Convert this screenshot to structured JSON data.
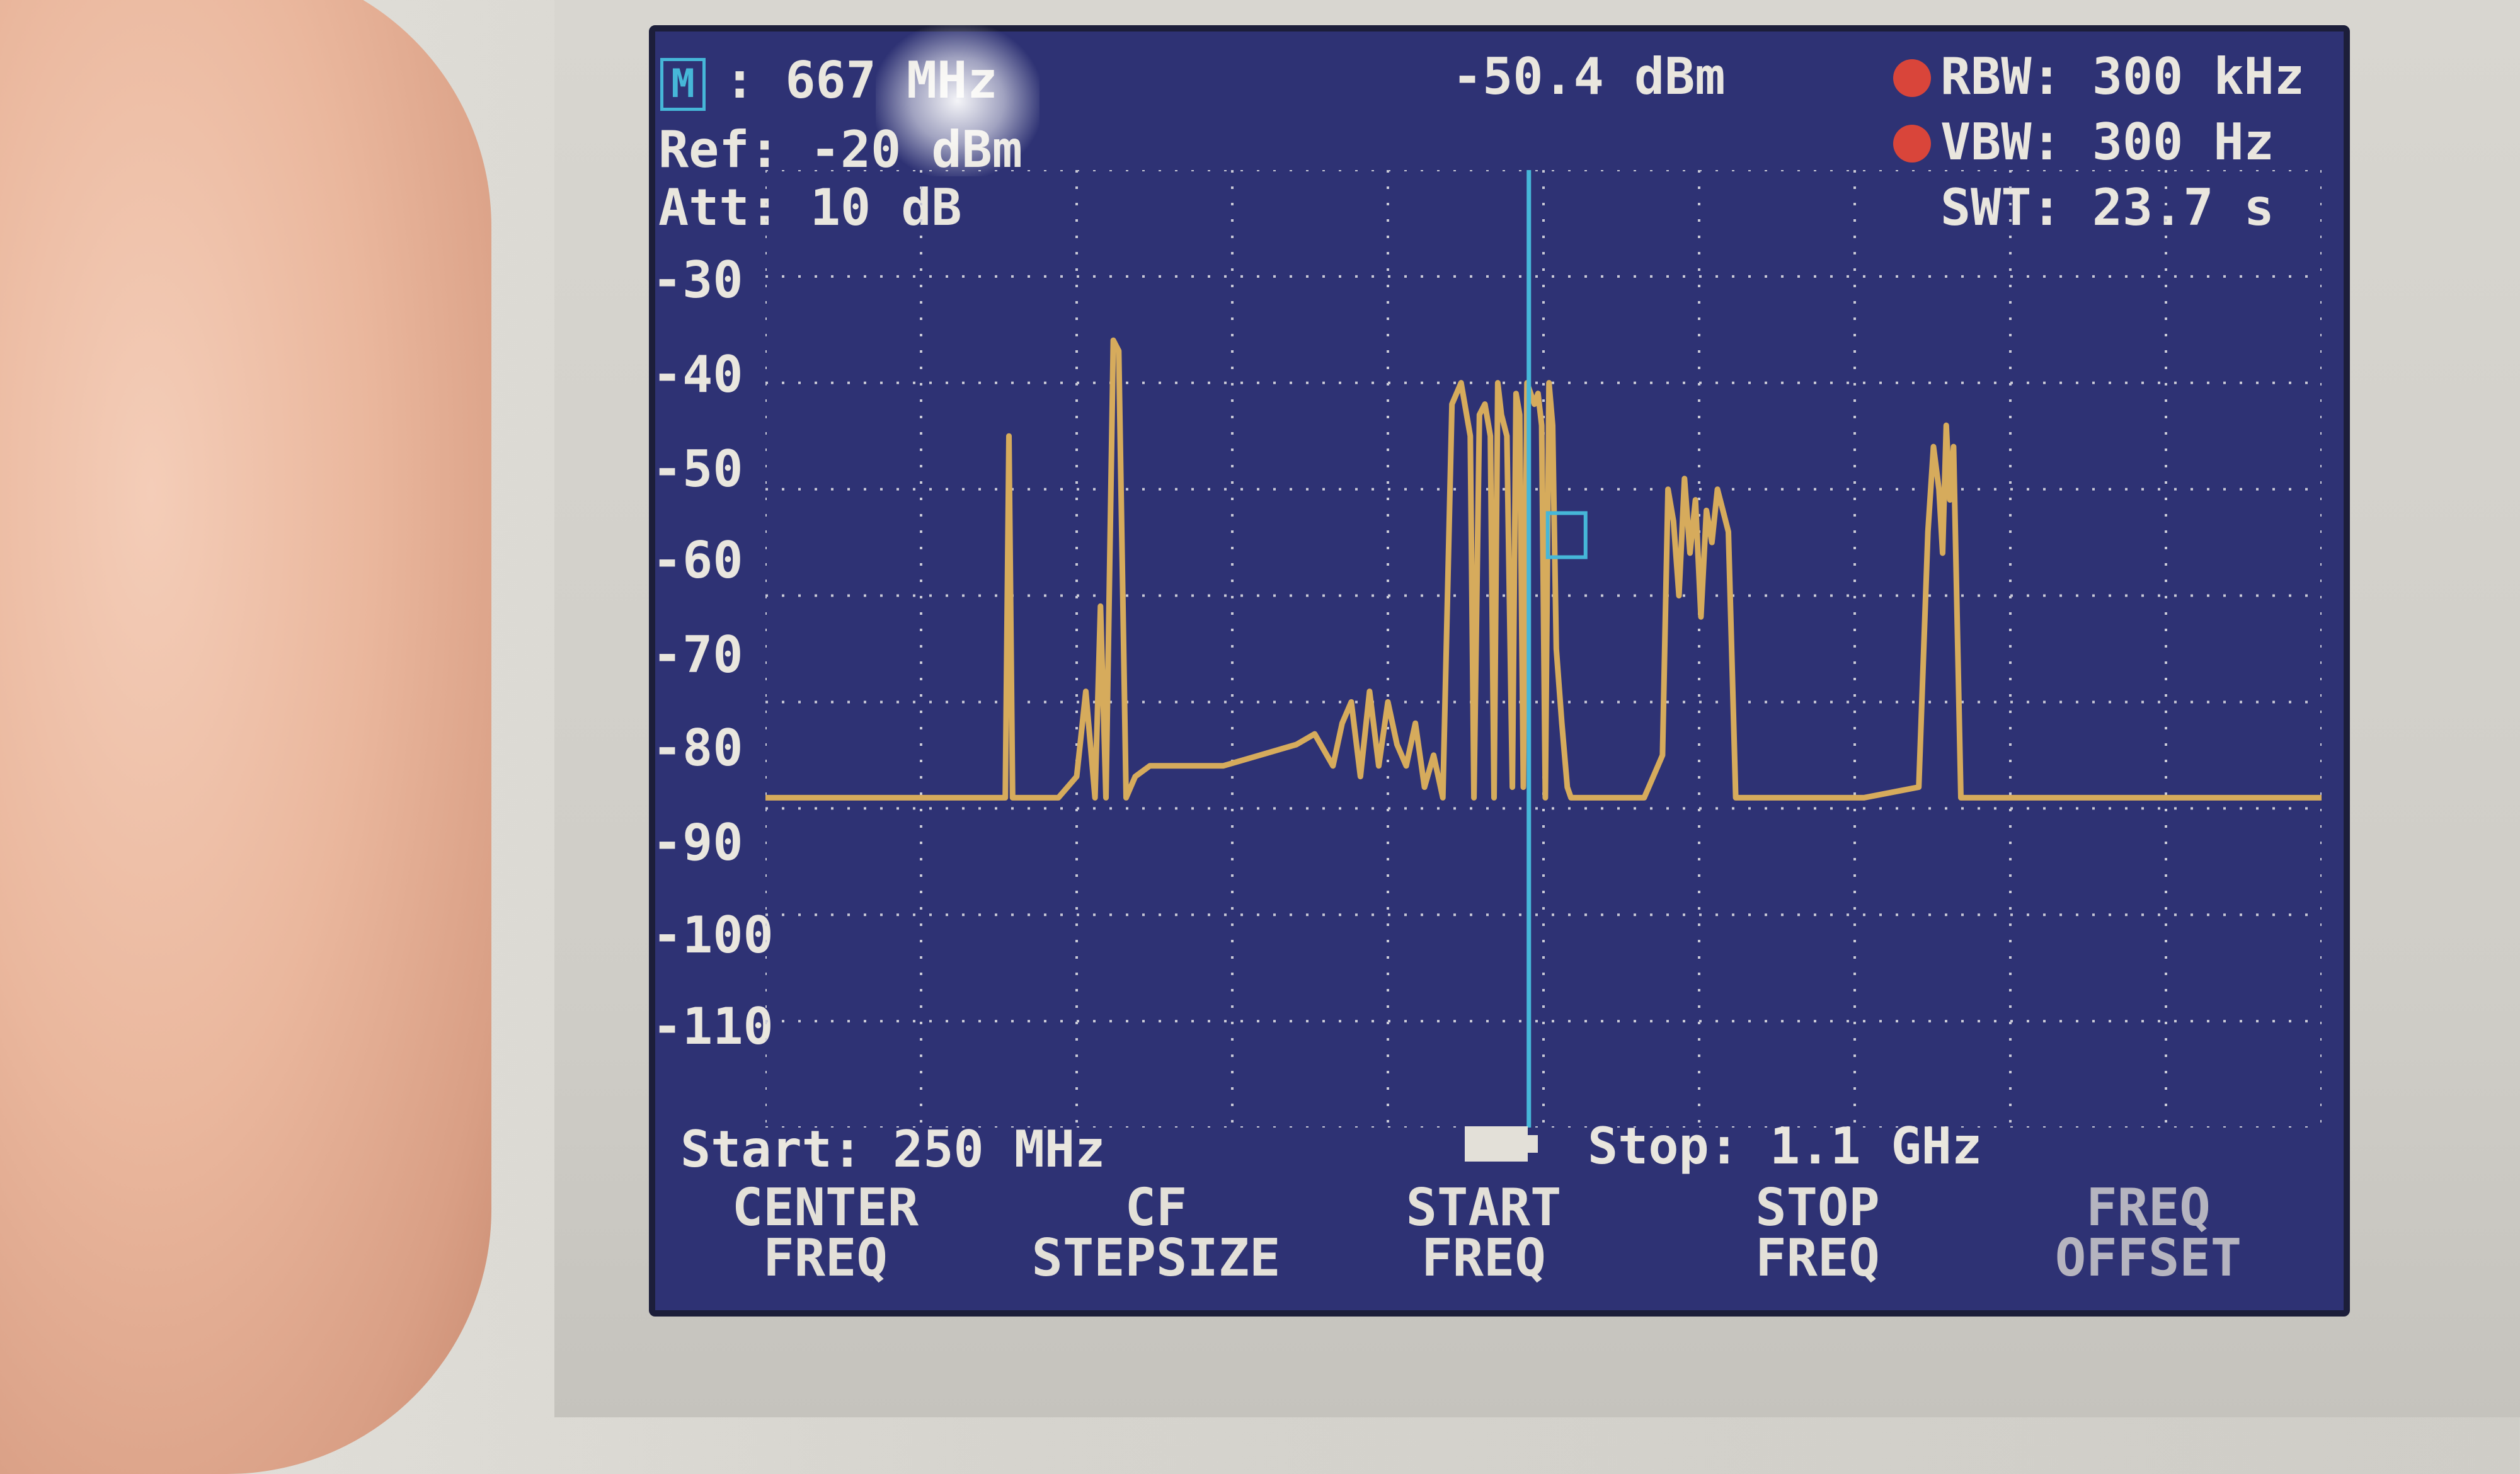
{
  "header": {
    "marker_label": ": 667 MHz",
    "marker_level": "-50.4 dBm",
    "ref_level": "Ref: -20 dBm",
    "attenuation": "Att: 10 dB",
    "rbw": "RBW: 300 kHz",
    "vbw": "VBW: 300 Hz",
    "sweep_time": "SWT: 23.7 s",
    "marker_icon_text": "M"
  },
  "y_axis": {
    "labels": [
      "-30",
      "-40",
      "-50",
      "-60",
      "-70",
      "-80",
      "-90",
      "-100",
      "-110"
    ]
  },
  "footer": {
    "start": "Start: 250 MHz",
    "stop": "Stop: 1.1 GHz"
  },
  "softkeys": [
    {
      "line1": "CENTER",
      "line2": "FREQ"
    },
    {
      "line1": "CF",
      "line2": "STEPSIZE"
    },
    {
      "line1": "START",
      "line2": "FREQ"
    },
    {
      "line1": "STOP",
      "line2": "FREQ"
    },
    {
      "line1": "FREQ",
      "line2": "OFFSET"
    }
  ],
  "colors": {
    "screen_bg": "#2e3274",
    "trace": "#d6ab5c",
    "marker_line": "#46b7d8",
    "grid": "#c9c9d6",
    "indicator_red": "#d9453a"
  },
  "chart_data": {
    "type": "line",
    "title": "",
    "xlabel": "",
    "ylabel": "",
    "xlim": [
      250,
      1100
    ],
    "ylim": [
      -120,
      -30
    ],
    "x_unit": "MHz",
    "y_unit": "dBm",
    "marker": {
      "x": 667,
      "y": -50.4
    },
    "series": [
      {
        "x": [
          250,
          300,
          340,
          381,
          383,
          385,
          389,
          392,
          395,
          410,
          420,
          425,
          430,
          433,
          436,
          440,
          443,
          447,
          452,
          460,
          480,
          500,
          520,
          540,
          550,
          560,
          565,
          570,
          575,
          580,
          585,
          590,
          595,
          600,
          605,
          610,
          615,
          620,
          625,
          630,
          635,
          637,
          640,
          643,
          646,
          648,
          650,
          652,
          655,
          658,
          660,
          662,
          664,
          666,
          668,
          670,
          672,
          674,
          676,
          678,
          680,
          682,
          685,
          688,
          690,
          700,
          730,
          740,
          743,
          746,
          749,
          752,
          755,
          758,
          761,
          764,
          767,
          770,
          773,
          776,
          780,
          790,
          800,
          850,
          880,
          885,
          888,
          891,
          893,
          895,
          897,
          899,
          903,
          950,
          1000,
          1080,
          1100
        ],
        "y": [
          -89,
          -89,
          -89,
          -89,
          -55,
          -89,
          -89,
          -89,
          -89,
          -89,
          -87,
          -79,
          -89,
          -71,
          -89,
          -46,
          -47,
          -89,
          -87,
          -86,
          -86,
          -86,
          -85,
          -84,
          -83,
          -86,
          -82,
          -80,
          -87,
          -79,
          -86,
          -80,
          -84,
          -86,
          -82,
          -88,
          -85,
          -89,
          -52,
          -50,
          -55,
          -89,
          -53,
          -52,
          -55,
          -89,
          -50,
          -53,
          -55,
          -88,
          -51,
          -53,
          -88,
          -50,
          -51,
          -52,
          -51,
          -54,
          -89,
          -50,
          -54,
          -75,
          -82,
          -88,
          -89,
          -89,
          -89,
          -85,
          -60,
          -63,
          -70,
          -59,
          -66,
          -61,
          -72,
          -62,
          -65,
          -60,
          -62,
          -64,
          -89,
          -89,
          -89,
          -89,
          -88,
          -64,
          -56,
          -60,
          -66,
          -54,
          -61,
          -56,
          -89,
          -89,
          -89,
          -89,
          -89
        ]
      }
    ]
  }
}
